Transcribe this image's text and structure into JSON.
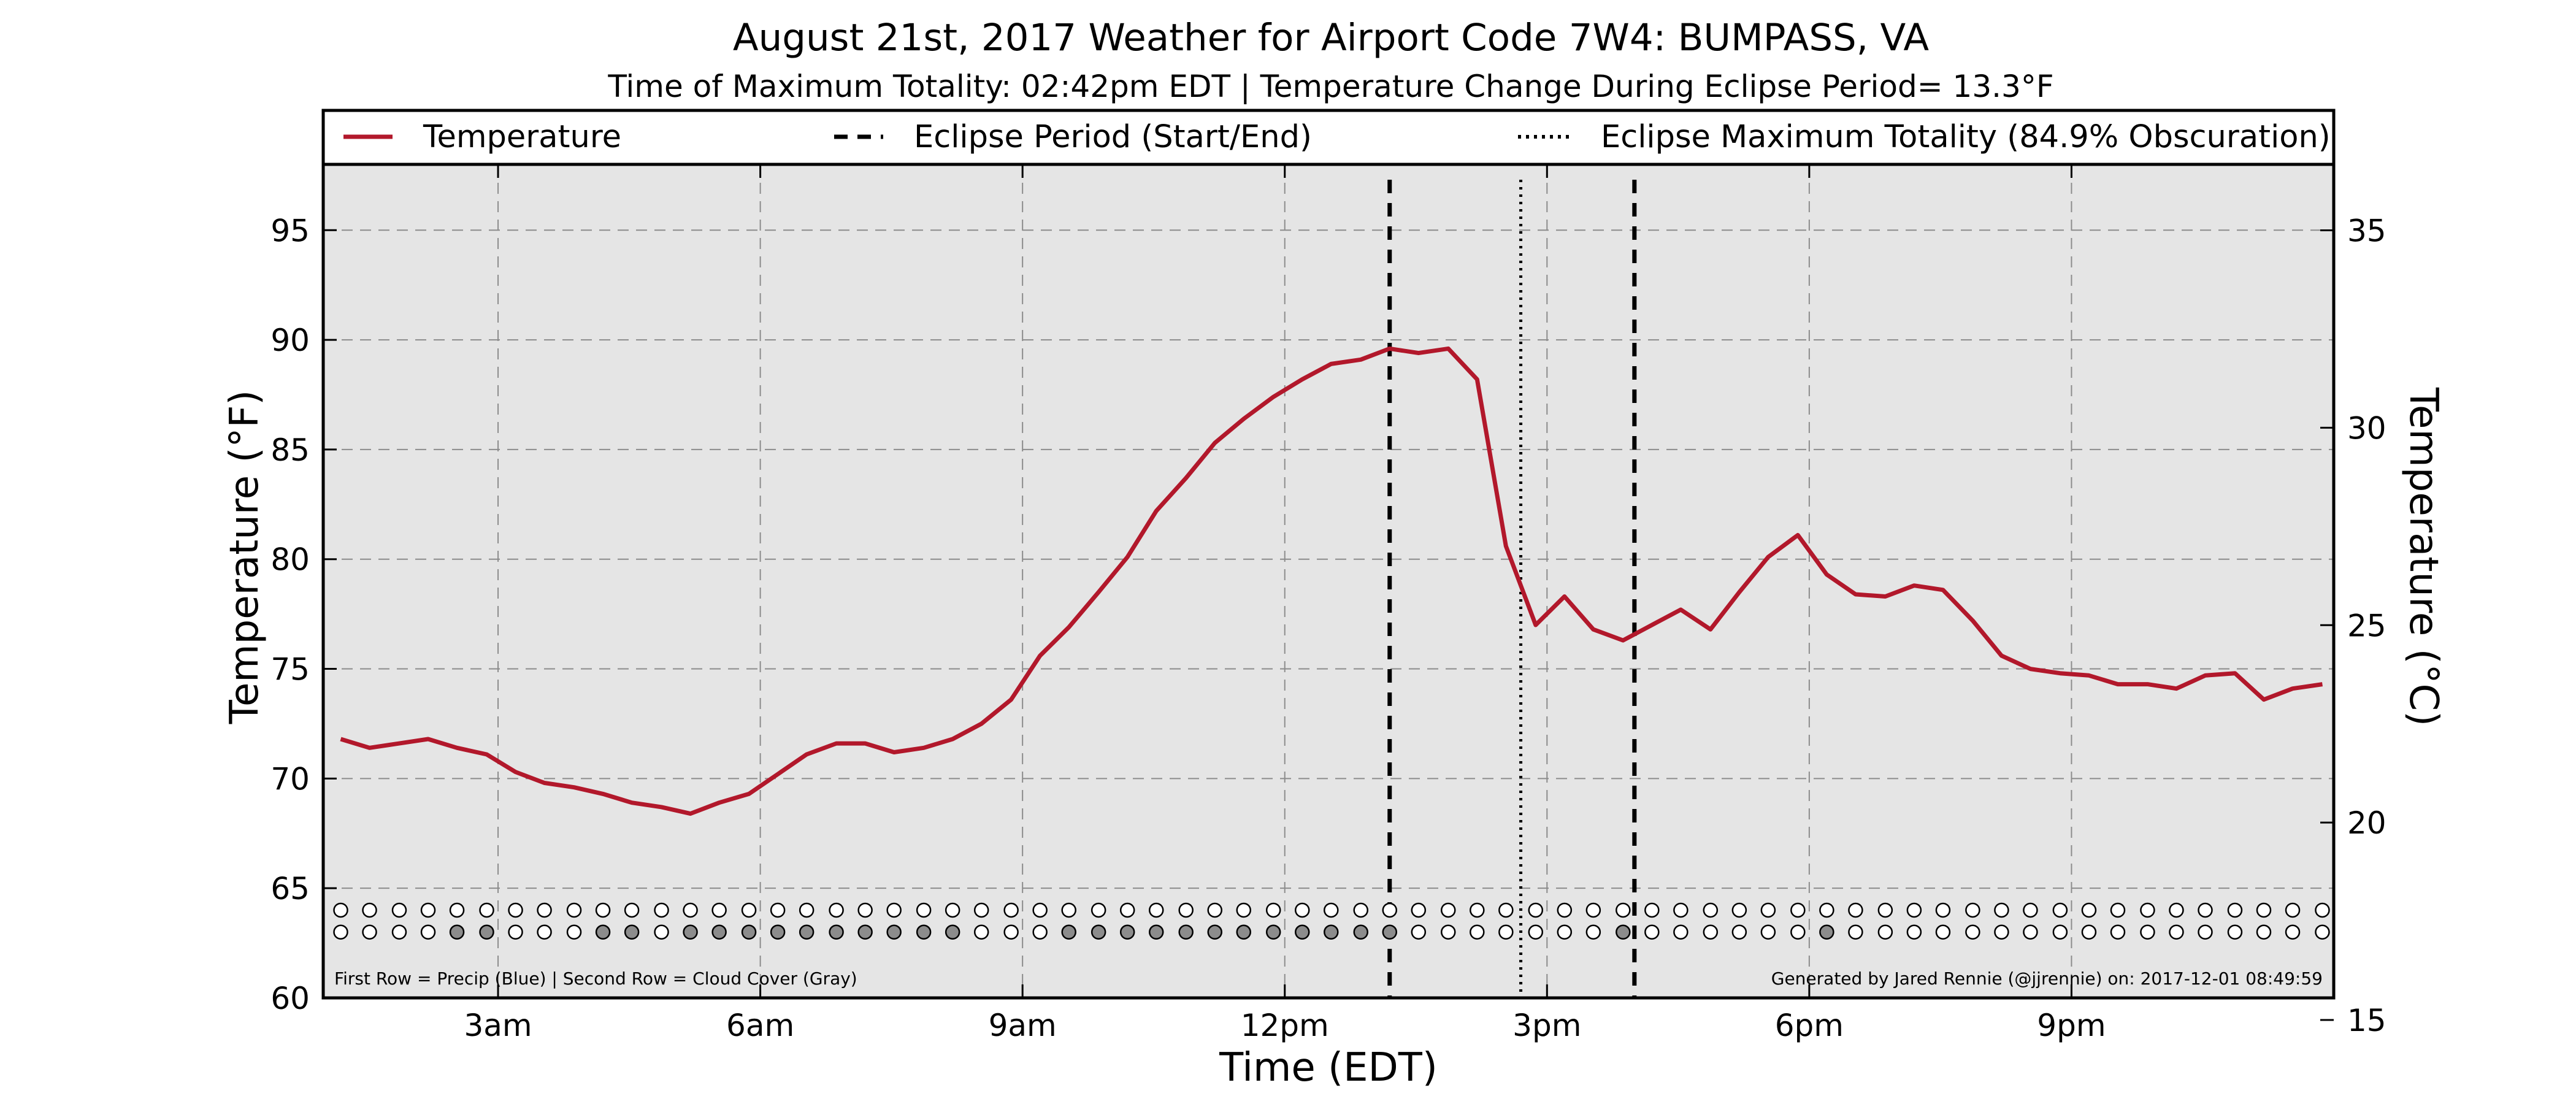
{
  "chart_data": {
    "type": "line",
    "title": "August 21st, 2017 Weather for Airport Code 7W4: BUMPASS, VA",
    "subtitle": "Time of Maximum Totality: 02:42pm EDT | Temperature Change During Eclipse Period= 13.3°F",
    "xlabel": "Time (EDT)",
    "ylabel": "Temperature (°F)",
    "y2label": "Temperature (°C)",
    "x_unit": "hours",
    "xlim": [
      1.0,
      24.0
    ],
    "ylim": [
      60,
      98
    ],
    "y2lim": [
      15.56,
      36.67
    ],
    "xticks": [
      {
        "value": 3,
        "label": "3am"
      },
      {
        "value": 6,
        "label": "6am"
      },
      {
        "value": 9,
        "label": "9am"
      },
      {
        "value": 12,
        "label": "12pm"
      },
      {
        "value": 15,
        "label": "3pm"
      },
      {
        "value": 18,
        "label": "6pm"
      },
      {
        "value": 21,
        "label": "9pm"
      }
    ],
    "yticks": [
      60,
      65,
      70,
      75,
      80,
      85,
      90,
      95
    ],
    "y2ticks": [
      15,
      20,
      25,
      30,
      35
    ],
    "grid": true,
    "legend_placement": "top",
    "legend": [
      {
        "label": "Temperature",
        "style": "solid",
        "color": "#b2182b"
      },
      {
        "label": "Eclipse Period (Start/End)",
        "style": "dashed",
        "color": "#000000"
      },
      {
        "label": "Eclipse Maximum Totality (84.9% Obscuration)",
        "style": "dotted",
        "color": "#000000"
      }
    ],
    "series": [
      {
        "color": "#b2182b",
        "points": [
          [
            1.2,
            71.8
          ],
          [
            1.53,
            71.4
          ],
          [
            1.87,
            71.6
          ],
          [
            2.2,
            71.8
          ],
          [
            2.53,
            71.4
          ],
          [
            2.87,
            71.1
          ],
          [
            3.2,
            70.3
          ],
          [
            3.53,
            69.8
          ],
          [
            3.87,
            69.6
          ],
          [
            4.2,
            69.3
          ],
          [
            4.53,
            68.9
          ],
          [
            4.87,
            68.7
          ],
          [
            5.2,
            68.4
          ],
          [
            5.53,
            68.9
          ],
          [
            5.87,
            69.3
          ],
          [
            6.2,
            70.2
          ],
          [
            6.53,
            71.1
          ],
          [
            6.87,
            71.6
          ],
          [
            7.2,
            71.6
          ],
          [
            7.53,
            71.2
          ],
          [
            7.87,
            71.4
          ],
          [
            8.2,
            71.8
          ],
          [
            8.53,
            72.5
          ],
          [
            8.87,
            73.6
          ],
          [
            9.2,
            75.6
          ],
          [
            9.53,
            76.9
          ],
          [
            9.87,
            78.5
          ],
          [
            10.2,
            80.1
          ],
          [
            10.53,
            82.2
          ],
          [
            10.87,
            83.7
          ],
          [
            11.2,
            85.3
          ],
          [
            11.53,
            86.4
          ],
          [
            11.87,
            87.4
          ],
          [
            12.2,
            88.2
          ],
          [
            12.53,
            88.9
          ],
          [
            12.87,
            89.1
          ],
          [
            13.2,
            89.6
          ],
          [
            13.53,
            89.4
          ],
          [
            13.87,
            89.6
          ],
          [
            14.2,
            88.2
          ],
          [
            14.53,
            80.6
          ],
          [
            14.87,
            77.0
          ],
          [
            15.2,
            78.3
          ],
          [
            15.53,
            76.8
          ],
          [
            15.87,
            76.3
          ],
          [
            16.2,
            77.0
          ],
          [
            16.53,
            77.7
          ],
          [
            16.87,
            76.8
          ],
          [
            17.2,
            78.5
          ],
          [
            17.53,
            80.1
          ],
          [
            17.87,
            81.1
          ],
          [
            18.2,
            79.3
          ],
          [
            18.53,
            78.4
          ],
          [
            18.87,
            78.3
          ],
          [
            19.2,
            78.8
          ],
          [
            19.53,
            78.6
          ],
          [
            19.87,
            77.2
          ],
          [
            20.2,
            75.6
          ],
          [
            20.53,
            75.0
          ],
          [
            20.87,
            74.8
          ],
          [
            21.2,
            74.7
          ],
          [
            21.53,
            74.3
          ],
          [
            21.87,
            74.3
          ],
          [
            22.2,
            74.1
          ],
          [
            22.53,
            74.7
          ],
          [
            22.87,
            74.8
          ],
          [
            23.2,
            73.6
          ],
          [
            23.53,
            74.1
          ],
          [
            23.87,
            74.3
          ]
        ]
      }
    ],
    "eclipse_start_hour": 13.2,
    "eclipse_end_hour": 16.0,
    "eclipse_max_hour": 14.7,
    "precip_row": "000000000000000000000000000000000000000000000000000000000000000000000",
    "cloud_row": "000011000110111111111100011111111111100000001000000100000000000000000",
    "precip_color": "#1f77b4",
    "cloud_color": "#8c8c8c",
    "footnote_left": "First Row = Precip (Blue) | Second Row = Cloud Cover (Gray)",
    "footnote_right": "Generated by Jared Rennie (@jjrennie) on: 2017-12-01 08:49:59"
  }
}
